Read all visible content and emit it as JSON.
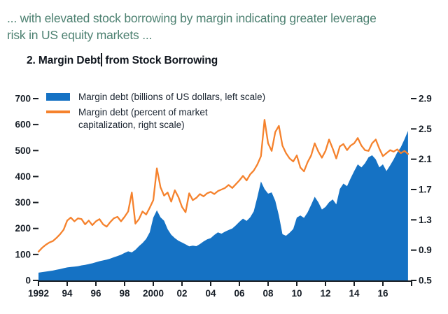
{
  "caption": {
    "line1": "... with elevated stock borrowing by margin indicating greater leverage",
    "line2": "risk in US equity markets ..."
  },
  "chart_title": {
    "part1": "2. Margin Debt",
    "part2": "from Stock Borrowing",
    "full": "2. Margin Debt from Stock Borrowing"
  },
  "colors": {
    "margin_debt_area": "#1572c4",
    "percent_line": "#f5822d",
    "caption_text": "#4d8171",
    "axis_text": "#161d26",
    "axis_line": "#1a1f24"
  },
  "chart_data": {
    "type": "area",
    "title": "2. Margin Debt from Stock Borrowing",
    "xlabel": "",
    "ylabel_left": "Margin debt (billions of US dollars)",
    "ylabel_right": "Margin debt (percent of market capitalization)",
    "grid": false,
    "legend_position": "top-left",
    "x_range": [
      1992,
      2018
    ],
    "x_ticks": {
      "years": [
        1992,
        1994,
        1996,
        1998,
        2000,
        2002,
        2004,
        2006,
        2008,
        2010,
        2012,
        2014,
        2016,
        2018
      ],
      "labels": [
        "1992",
        "94",
        "96",
        "98",
        "2000",
        "02",
        "04",
        "06",
        "08",
        "10",
        "12",
        "14",
        "16",
        ""
      ]
    },
    "left_axis": {
      "min": 0,
      "max": 700,
      "ticks": [
        0,
        100,
        200,
        300,
        400,
        500,
        600,
        700
      ]
    },
    "right_axis": {
      "min": 0.5,
      "max": 2.9,
      "ticks": [
        0.5,
        0.9,
        1.3,
        1.7,
        2.1,
        2.5,
        2.9
      ]
    },
    "x": [
      1992,
      1992.25,
      1992.5,
      1992.75,
      1993,
      1993.25,
      1993.5,
      1993.75,
      1994,
      1994.25,
      1994.5,
      1994.75,
      1995,
      1995.25,
      1995.5,
      1995.75,
      1996,
      1996.25,
      1996.5,
      1996.75,
      1997,
      1997.25,
      1997.5,
      1997.75,
      1998,
      1998.25,
      1998.5,
      1998.75,
      1999,
      1999.25,
      1999.5,
      1999.75,
      2000,
      2000.25,
      2000.5,
      2000.75,
      2001,
      2001.25,
      2001.5,
      2001.75,
      2002,
      2002.25,
      2002.5,
      2002.75,
      2003,
      2003.25,
      2003.5,
      2003.75,
      2004,
      2004.25,
      2004.5,
      2004.75,
      2005,
      2005.25,
      2005.5,
      2005.75,
      2006,
      2006.25,
      2006.5,
      2006.75,
      2007,
      2007.25,
      2007.5,
      2007.75,
      2008,
      2008.25,
      2008.5,
      2008.75,
      2009,
      2009.25,
      2009.5,
      2009.75,
      2010,
      2010.25,
      2010.5,
      2010.75,
      2011,
      2011.25,
      2011.5,
      2011.75,
      2012,
      2012.25,
      2012.5,
      2012.75,
      2013,
      2013.25,
      2013.5,
      2013.75,
      2014,
      2014.25,
      2014.5,
      2014.75,
      2015,
      2015.25,
      2015.5,
      2015.75,
      2016,
      2016.25,
      2016.5,
      2016.75,
      2017,
      2017.25,
      2017.5,
      2017.75
    ],
    "series": [
      {
        "name": "Margin debt (billions of US dollars, left scale)",
        "type": "area",
        "axis": "left",
        "color": "#1572c4",
        "values": [
          30,
          32,
          34,
          36,
          38,
          41,
          44,
          47,
          50,
          52,
          53,
          55,
          58,
          60,
          63,
          66,
          70,
          74,
          77,
          80,
          84,
          89,
          94,
          99,
          106,
          112,
          108,
          118,
          132,
          144,
          160,
          185,
          242,
          270,
          243,
          230,
          197,
          176,
          163,
          153,
          146,
          139,
          131,
          134,
          132,
          140,
          150,
          158,
          163,
          175,
          185,
          180,
          188,
          194,
          200,
          212,
          226,
          238,
          229,
          243,
          266,
          320,
          381,
          352,
          334,
          339,
          306,
          250,
          178,
          172,
          184,
          198,
          242,
          250,
          241,
          262,
          291,
          322,
          301,
          273,
          283,
          301,
          312,
          293,
          352,
          373,
          363,
          393,
          421,
          447,
          435,
          451,
          474,
          482,
          466,
          435,
          447,
          421,
          443,
          466,
          493,
          513,
          543,
          576
        ]
      },
      {
        "name": "Margin debt (percent of market capitalization, right scale)",
        "type": "line",
        "axis": "right",
        "color": "#f5822d",
        "values": [
          0.88,
          0.93,
          0.97,
          1.0,
          1.02,
          1.06,
          1.11,
          1.17,
          1.29,
          1.33,
          1.28,
          1.32,
          1.31,
          1.24,
          1.29,
          1.23,
          1.28,
          1.31,
          1.24,
          1.21,
          1.27,
          1.32,
          1.34,
          1.28,
          1.34,
          1.41,
          1.66,
          1.25,
          1.31,
          1.41,
          1.37,
          1.46,
          1.56,
          1.98,
          1.73,
          1.62,
          1.66,
          1.54,
          1.69,
          1.6,
          1.47,
          1.4,
          1.65,
          1.56,
          1.59,
          1.64,
          1.61,
          1.65,
          1.67,
          1.64,
          1.68,
          1.7,
          1.72,
          1.76,
          1.72,
          1.77,
          1.82,
          1.88,
          1.82,
          1.9,
          1.95,
          2.03,
          2.14,
          2.62,
          2.31,
          2.21,
          2.46,
          2.54,
          2.28,
          2.18,
          2.11,
          2.07,
          2.15,
          1.99,
          1.94,
          2.06,
          2.15,
          2.31,
          2.2,
          2.12,
          2.21,
          2.36,
          2.24,
          2.11,
          2.27,
          2.3,
          2.22,
          2.28,
          2.31,
          2.38,
          2.28,
          2.22,
          2.21,
          2.31,
          2.36,
          2.24,
          2.14,
          2.18,
          2.22,
          2.2,
          2.23,
          2.18,
          2.21,
          2.17
        ]
      }
    ]
  }
}
